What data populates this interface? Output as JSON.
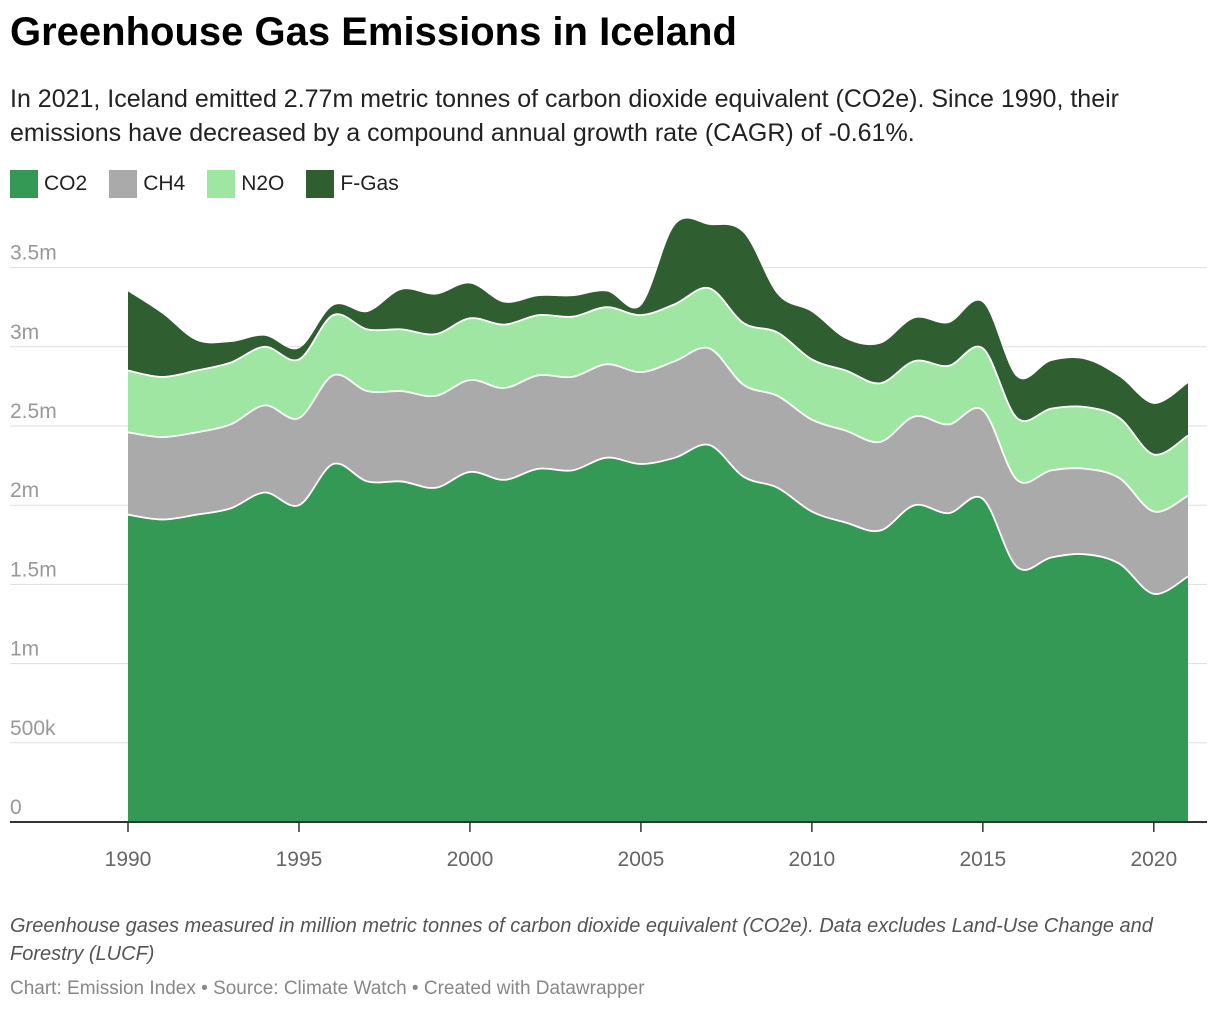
{
  "header": {
    "title": "Greenhouse Gas Emissions in Iceland",
    "subtitle": "In 2021, Iceland emitted 2.77m metric tonnes of carbon dioxide equivalent (CO2e). Since 1990, their emissions have decreased by a compound annual growth rate (CAGR) of -0.61%."
  },
  "footer": {
    "notes": "Greenhouse gases measured in million metric tonnes of carbon dioxide equivalent (CO2e). Data excludes Land-Use Change and Forestry (LUCF)",
    "byline": "Chart: Emission Index • Source: Climate Watch • Created with Datawrapper"
  },
  "chart_data": {
    "type": "area",
    "stacked": true,
    "title": "Greenhouse Gas Emissions in Iceland",
    "xlabel": "",
    "ylabel": "",
    "ylim": [
      0,
      3800000
    ],
    "grid": true,
    "legend_position": "top-left",
    "x": [
      1990,
      1991,
      1992,
      1993,
      1994,
      1995,
      1996,
      1997,
      1998,
      1999,
      2000,
      2001,
      2002,
      2003,
      2004,
      2005,
      2006,
      2007,
      2008,
      2009,
      2010,
      2011,
      2012,
      2013,
      2014,
      2015,
      2016,
      2017,
      2018,
      2019,
      2020,
      2021
    ],
    "x_ticks": [
      {
        "value": 1990,
        "label": "1990"
      },
      {
        "value": 1995,
        "label": "1995"
      },
      {
        "value": 2000,
        "label": "2000"
      },
      {
        "value": 2005,
        "label": "2005"
      },
      {
        "value": 2010,
        "label": "2010"
      },
      {
        "value": 2015,
        "label": "2015"
      },
      {
        "value": 2020,
        "label": "2020"
      }
    ],
    "y_ticks": [
      {
        "value": 0,
        "label": "0"
      },
      {
        "value": 500000,
        "label": "500k"
      },
      {
        "value": 1000000,
        "label": "1m"
      },
      {
        "value": 1500000,
        "label": "1.5m"
      },
      {
        "value": 2000000,
        "label": "2m"
      },
      {
        "value": 2500000,
        "label": "2.5m"
      },
      {
        "value": 3000000,
        "label": "3m"
      },
      {
        "value": 3500000,
        "label": "3.5m"
      }
    ],
    "series": [
      {
        "name": "CO2",
        "color": "#339955",
        "values": [
          1940000,
          1910000,
          1940000,
          1980000,
          2080000,
          2000000,
          2260000,
          2150000,
          2150000,
          2110000,
          2210000,
          2160000,
          2230000,
          2220000,
          2300000,
          2260000,
          2300000,
          2380000,
          2180000,
          2110000,
          1960000,
          1890000,
          1840000,
          2000000,
          1950000,
          2040000,
          1610000,
          1670000,
          1690000,
          1630000,
          1440000,
          1550000
        ]
      },
      {
        "name": "CH4",
        "color": "#aaaaaa",
        "values": [
          520000,
          520000,
          520000,
          530000,
          550000,
          550000,
          560000,
          570000,
          570000,
          580000,
          580000,
          580000,
          590000,
          590000,
          590000,
          580000,
          610000,
          610000,
          580000,
          580000,
          580000,
          580000,
          560000,
          560000,
          560000,
          560000,
          550000,
          550000,
          540000,
          540000,
          520000,
          510000
        ]
      },
      {
        "name": "N2O",
        "color": "#9fe6a3",
        "values": [
          390000,
          380000,
          390000,
          390000,
          370000,
          370000,
          380000,
          390000,
          390000,
          390000,
          390000,
          400000,
          380000,
          380000,
          360000,
          360000,
          360000,
          380000,
          390000,
          400000,
          380000,
          380000,
          370000,
          350000,
          370000,
          390000,
          390000,
          390000,
          390000,
          380000,
          360000,
          380000
        ]
      },
      {
        "name": "F-Gas",
        "color": "#2f5e31",
        "values": [
          500000,
          400000,
          190000,
          130000,
          70000,
          70000,
          60000,
          110000,
          250000,
          250000,
          220000,
          140000,
          120000,
          130000,
          100000,
          60000,
          500000,
          400000,
          570000,
          240000,
          300000,
          200000,
          250000,
          270000,
          270000,
          290000,
          260000,
          300000,
          300000,
          260000,
          320000,
          330000
        ]
      }
    ]
  }
}
